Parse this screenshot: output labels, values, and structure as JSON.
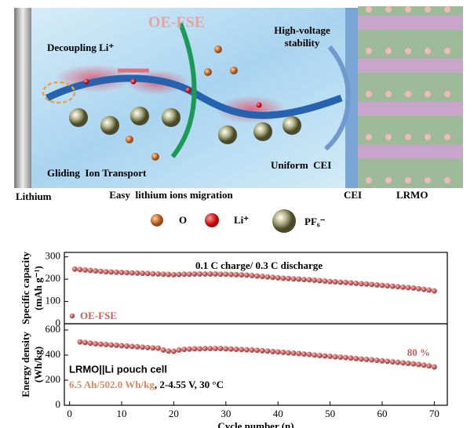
{
  "illustration": {
    "electrolyte": "OE-FSE",
    "decoupling": "Decoupling Li⁺",
    "high_voltage": [
      "High-voltage",
      "stability"
    ],
    "gliding": "Gliding  Ion Transport",
    "uniform_cei": "Uniform  CEI",
    "bottom_labels": {
      "lithium": "Lithium",
      "migration": "Easy  lithium ions migration",
      "cei": "CEI",
      "lrmo": "LRMO"
    }
  },
  "legend": {
    "o": "O",
    "li": "Li⁺",
    "pf6": "PF₆⁻"
  },
  "chart_data": [
    {
      "type": "scatter",
      "ylabel": "Specific capacity",
      "ylabel2": "(mAh g⁻¹)",
      "annotation": "0.1 C charge/ 0.3 C discharge",
      "x": [
        1,
        2,
        3,
        4,
        5,
        6,
        7,
        8,
        9,
        10,
        11,
        12,
        13,
        14,
        15,
        16,
        17,
        18,
        19,
        20,
        21,
        22,
        23,
        24,
        25,
        26,
        27,
        28,
        29,
        30,
        31,
        32,
        33,
        34,
        35,
        36,
        37,
        38,
        39,
        40,
        41,
        42,
        43,
        44,
        45,
        46,
        47,
        48,
        49,
        50,
        51,
        52,
        53,
        54,
        55,
        56,
        57,
        58,
        59,
        60,
        61,
        62,
        63,
        64,
        65,
        66,
        67,
        68,
        69,
        70
      ],
      "series": [
        {
          "name": "OE-FSE",
          "color": "#c0605f",
          "values": [
            245,
            243,
            241,
            239,
            237,
            235,
            233,
            232,
            231,
            230,
            229,
            228,
            227,
            226,
            225,
            224,
            223,
            222,
            221,
            220,
            221,
            222,
            222,
            223,
            223,
            223,
            223,
            223,
            222,
            222,
            221,
            220,
            219,
            218,
            216,
            214,
            212,
            210,
            208,
            206,
            204,
            203,
            201,
            200,
            198,
            197,
            195,
            193,
            191,
            189,
            188,
            186,
            185,
            183,
            181,
            179,
            178,
            176,
            174,
            172,
            170,
            168,
            166,
            164,
            162,
            160,
            157,
            154,
            151,
            147
          ]
        }
      ],
      "xlim": [
        -1,
        72.5
      ],
      "ylim": [
        0,
        320
      ],
      "yticks": [
        0,
        100,
        200,
        300
      ]
    },
    {
      "type": "scatter",
      "ylabel": "Energy density",
      "ylabel2": "(Wh/kg)",
      "annotations": {
        "retention": "80 %",
        "cell": "LRMO||Li pouch cell",
        "spec": "6.5 Ah/502.0 Wh/kg",
        "conditions": ", 2-4.55 V, 30 °C"
      },
      "xlabel": "Cycle number (n)",
      "color": "#c0605f",
      "x": [
        1,
        2,
        3,
        4,
        5,
        6,
        7,
        8,
        9,
        10,
        11,
        12,
        13,
        14,
        15,
        16,
        17,
        18,
        19,
        20,
        21,
        22,
        23,
        24,
        25,
        26,
        27,
        28,
        29,
        30,
        31,
        32,
        33,
        34,
        35,
        36,
        37,
        38,
        39,
        40,
        41,
        42,
        43,
        44,
        45,
        46,
        47,
        48,
        49,
        50,
        51,
        52,
        53,
        54,
        55,
        56,
        57,
        58,
        59,
        60,
        61,
        62,
        63,
        64,
        65,
        66,
        67,
        68,
        69,
        70
      ],
      "values": [
        null,
        505,
        500,
        495,
        490,
        487,
        484,
        481,
        478,
        475,
        472,
        469,
        466,
        463,
        460,
        457,
        455,
        440,
        432,
        430,
        440,
        445,
        448,
        450,
        450,
        452,
        452,
        452,
        452,
        450,
        448,
        446,
        444,
        442,
        440,
        438,
        435,
        432,
        428,
        425,
        422,
        418,
        415,
        412,
        408,
        405,
        400,
        396,
        393,
        390,
        386,
        383,
        380,
        376,
        372,
        368,
        365,
        362,
        358,
        354,
        350,
        346,
        342,
        338,
        334,
        330,
        325,
        320,
        314,
        305
      ],
      "xlim": [
        -1,
        72.5
      ],
      "ylim": [
        0,
        650
      ],
      "yticks": [
        0,
        200,
        400,
        600
      ],
      "xticks": [
        0,
        10,
        20,
        30,
        40,
        50,
        60,
        70
      ]
    }
  ]
}
